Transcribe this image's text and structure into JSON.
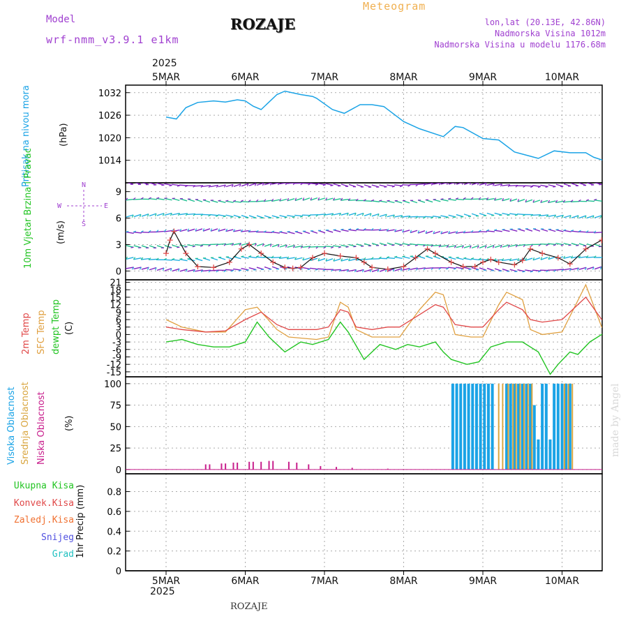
{
  "header": {
    "model_label": "Model",
    "model_name": "wrf-nmm_v3.9.1 e1km",
    "station": "ROZAJE",
    "product": "Meteogram",
    "lonlat": "lon,lat (20.13E, 42.86N)",
    "elevation": "Nadmorska Visina 1012m",
    "model_elevation": "Nadmorska Visina u modelu 1176.68m",
    "year_top": "2025",
    "year_bottom": "2025",
    "footer_station": "ROZAJE",
    "credit": "made by Angel"
  },
  "colors": {
    "pressure": "#1aa3e6",
    "temp2m": "#e04848",
    "sfc": "#e0a040",
    "dewpt": "#22c422",
    "high_cloud": "#1aa3e6",
    "mid_cloud": "#d9a640",
    "low_cloud": "#c81e8c",
    "title_purple": "#a040d0",
    "sfc_orange": "#f0b050"
  },
  "chart_data": [
    {
      "type": "line",
      "panel": "pressure",
      "title": "",
      "ylabel": "Pritisak na nivou mora",
      "unit": "(hPa)",
      "ylim": [
        1008,
        1034
      ],
      "yticks": [
        1014,
        1020,
        1026,
        1032
      ],
      "xlim": [
        0,
        6
      ],
      "x_labels": [
        "5MAR",
        "6MAR",
        "7MAR",
        "8MAR",
        "9MAR",
        "10MAR"
      ],
      "grid": true,
      "series": [
        {
          "name": "Pritisak na nivou mora",
          "x": [
            0,
            0.13,
            0.25,
            0.4,
            0.6,
            0.75,
            0.9,
            1.0,
            1.1,
            1.2,
            1.4,
            1.5,
            1.7,
            1.85,
            1.9,
            2.1,
            2.25,
            2.45,
            2.6,
            2.75,
            3.0,
            3.2,
            3.5,
            3.65,
            3.75,
            4.0,
            4.2,
            4.4,
            4.7,
            4.9,
            5.1,
            5.3,
            5.4,
            5.55,
            5.75,
            5.9,
            6.0
          ],
          "y": [
            1025.5,
            1025,
            1028,
            1029.4,
            1029.8,
            1029.5,
            1030.1,
            1029.8,
            1028.4,
            1027.5,
            1031.5,
            1032.4,
            1031.5,
            1031,
            1030.5,
            1027.5,
            1026.5,
            1028.8,
            1028.8,
            1028.3,
            1024.3,
            1022.4,
            1020.3,
            1023,
            1022.7,
            1019.8,
            1019.4,
            1016.2,
            1014.5,
            1016.5,
            1016,
            1016,
            1014.8,
            1013.8,
            1014,
            1016,
            1015.5
          ]
        }
      ]
    },
    {
      "type": "line",
      "panel": "wind",
      "title": "",
      "ylabel": "10m Vjetar Brzina i Pravac",
      "unit": "(m/s)",
      "ylim": [
        -1,
        10
      ],
      "yticks": [
        0,
        3,
        6,
        9
      ],
      "xlim": [
        0,
        6
      ],
      "grid": true,
      "compass": {
        "n": "N",
        "e": "E",
        "s": "S",
        "w": "W"
      },
      "barb_rows": [
        0.2,
        1.4,
        2.9,
        4.5,
        6.3,
        8.0,
        9.8
      ],
      "series": [
        {
          "name": "Brzina",
          "x": [
            0,
            0.05,
            0.1,
            0.25,
            0.4,
            0.6,
            0.8,
            0.95,
            1.05,
            1.2,
            1.35,
            1.5,
            1.6,
            1.7,
            1.85,
            2.0,
            2.2,
            2.4,
            2.5,
            2.6,
            2.8,
            3.0,
            3.15,
            3.3,
            3.4,
            3.6,
            3.75,
            3.9,
            4.0,
            4.1,
            4.2,
            4.4,
            4.5,
            4.6,
            4.75,
            4.95,
            5.1,
            5.3,
            5.5,
            5.7,
            5.9,
            6.0
          ],
          "y": [
            2,
            3.5,
            4.5,
            2,
            0.5,
            0.4,
            1,
            2.5,
            3,
            2,
            1,
            0.4,
            0.3,
            0.4,
            1.5,
            2,
            1.7,
            1.5,
            1,
            0.4,
            0.2,
            0.5,
            1.5,
            2.5,
            2,
            1,
            0.5,
            0.5,
            1,
            1.3,
            1,
            0.7,
            1.2,
            2.5,
            2,
            1.5,
            0.8,
            2.5,
            3.5,
            2.5,
            3,
            5.5
          ]
        }
      ]
    },
    {
      "type": "line",
      "panel": "temperature",
      "title": "",
      "ylabel_2m": "2m Temp",
      "ylabel_sfc": "SFC Temp",
      "ylabel_dew": "dewpt Temp",
      "unit": "(C)",
      "ylim": [
        -17,
        22
      ],
      "yticks": [
        -15,
        -12,
        -9,
        -6,
        -3,
        0,
        3,
        6,
        9,
        12,
        15,
        18,
        21
      ],
      "xlim": [
        0,
        6
      ],
      "grid": true,
      "series": [
        {
          "name": "2m Temp",
          "x": [
            0,
            0.2,
            0.5,
            0.75,
            1.0,
            1.2,
            1.4,
            1.55,
            1.9,
            2.05,
            2.2,
            2.3,
            2.4,
            2.6,
            2.8,
            2.95,
            3.2,
            3.4,
            3.5,
            3.65,
            3.85,
            4.0,
            4.2,
            4.3,
            4.5,
            4.6,
            4.75,
            5.0,
            5.3,
            5.5,
            5.8,
            6.0
          ],
          "y": [
            3,
            2,
            1,
            1.5,
            6,
            9,
            4,
            2,
            2,
            3,
            10,
            9,
            3,
            2,
            3,
            3,
            8,
            12,
            11,
            4,
            3,
            3,
            10,
            13,
            10,
            6,
            5,
            6,
            15,
            6,
            5,
            14
          ]
        },
        {
          "name": "SFC Temp",
          "x": [
            0,
            0.2,
            0.5,
            0.75,
            1.0,
            1.15,
            1.4,
            1.55,
            1.9,
            2.05,
            2.2,
            2.3,
            2.4,
            2.6,
            2.8,
            2.95,
            3.2,
            3.4,
            3.5,
            3.65,
            3.85,
            4.0,
            4.2,
            4.3,
            4.5,
            4.6,
            4.75,
            5.0,
            5.3,
            5.5,
            5.8,
            6.0
          ],
          "y": [
            6,
            3,
            1,
            1,
            10,
            11,
            2,
            -1,
            -2,
            -1,
            13,
            11,
            2,
            -1,
            -1,
            -1,
            10,
            17,
            16,
            0,
            -1,
            -1,
            12,
            17,
            14,
            2,
            0,
            1,
            20,
            3,
            0,
            19
          ]
        },
        {
          "name": "dewpt Temp",
          "x": [
            0,
            0.2,
            0.4,
            0.6,
            0.8,
            1.0,
            1.15,
            1.3,
            1.5,
            1.7,
            1.85,
            2.05,
            2.2,
            2.3,
            2.5,
            2.7,
            2.9,
            3.05,
            3.2,
            3.4,
            3.5,
            3.6,
            3.8,
            3.95,
            4.1,
            4.3,
            4.5,
            4.7,
            4.85,
            4.95,
            5.1,
            5.2,
            5.35,
            5.6,
            5.8,
            6.0
          ],
          "y": [
            -3,
            -2,
            -4,
            -5,
            -5,
            -3,
            5,
            -1,
            -7,
            -3,
            -4,
            -2,
            5,
            1,
            -10,
            -4,
            -6,
            -4,
            -5,
            -3,
            -7,
            -10,
            -12,
            -11,
            -5,
            -3,
            -3,
            -7,
            -16,
            -12,
            -7,
            -8,
            -3,
            2,
            3,
            4
          ]
        }
      ]
    },
    {
      "type": "bar",
      "panel": "cloud",
      "title": "",
      "ylabel_high": "Visoka Oblacnost",
      "ylabel_mid": "Srednja Oblacnost",
      "ylabel_low": "Niska Oblacnost",
      "unit": "(%)",
      "ylim": [
        -5,
        108
      ],
      "yticks": [
        0,
        25,
        50,
        75,
        100
      ],
      "xlim": [
        0,
        6
      ],
      "grid": true,
      "series": [
        {
          "name": "Visoka Oblacnost",
          "x": [
            3.62,
            3.67,
            3.72,
            3.77,
            3.82,
            3.87,
            3.92,
            3.97,
            4.02,
            4.07,
            4.12,
            4.3,
            4.35,
            4.4,
            4.45,
            4.5,
            4.55,
            4.6,
            4.65,
            4.7,
            4.75,
            4.8,
            4.85,
            4.9,
            4.95,
            5.0,
            5.05,
            5.1
          ],
          "y": [
            100,
            100,
            100,
            100,
            100,
            100,
            100,
            100,
            100,
            100,
            100,
            100,
            100,
            100,
            100,
            100,
            100,
            100,
            75,
            35,
            100,
            100,
            35,
            100,
            100,
            100,
            100,
            100
          ]
        },
        {
          "name": "Srednja Oblacnost",
          "x": [
            4.2,
            4.25,
            4.32,
            4.38,
            4.42,
            4.47,
            4.52,
            4.57,
            4.62,
            5.03,
            5.08,
            5.13
          ],
          "y": [
            100,
            100,
            100,
            100,
            100,
            100,
            100,
            100,
            100,
            100,
            100,
            100
          ]
        },
        {
          "name": "Niska Oblacnost",
          "x": [
            0.5,
            0.55,
            0.7,
            0.75,
            0.85,
            0.9,
            1.05,
            1.1,
            1.2,
            1.3,
            1.35,
            1.55,
            1.65,
            1.8,
            1.95,
            2.15,
            2.35,
            2.8
          ],
          "y": [
            6,
            6,
            7,
            7,
            8,
            8,
            9,
            9,
            9,
            10,
            10,
            9,
            8,
            6,
            4,
            3,
            2,
            1
          ]
        }
      ]
    },
    {
      "type": "line",
      "panel": "precipitation",
      "title": "",
      "ylabel": "1hr Precip (mm)",
      "legend": [
        "Ukupna Kisa",
        "Konvek.Kisa",
        "Zaledj.Kisa",
        "Snijeg",
        "Grad"
      ],
      "legend_colors": [
        "#22c422",
        "#e04848",
        "#f07030",
        "#5050e0",
        "#20c0c0"
      ],
      "ylim": [
        0,
        0.98
      ],
      "yticks": [
        0,
        0.2,
        0.4,
        0.6,
        0.8
      ],
      "ytick_labels": [
        "0",
        "0.2",
        "0.4",
        "0.6",
        "0.8"
      ],
      "xlim": [
        0,
        6
      ],
      "grid": true,
      "series": []
    }
  ]
}
